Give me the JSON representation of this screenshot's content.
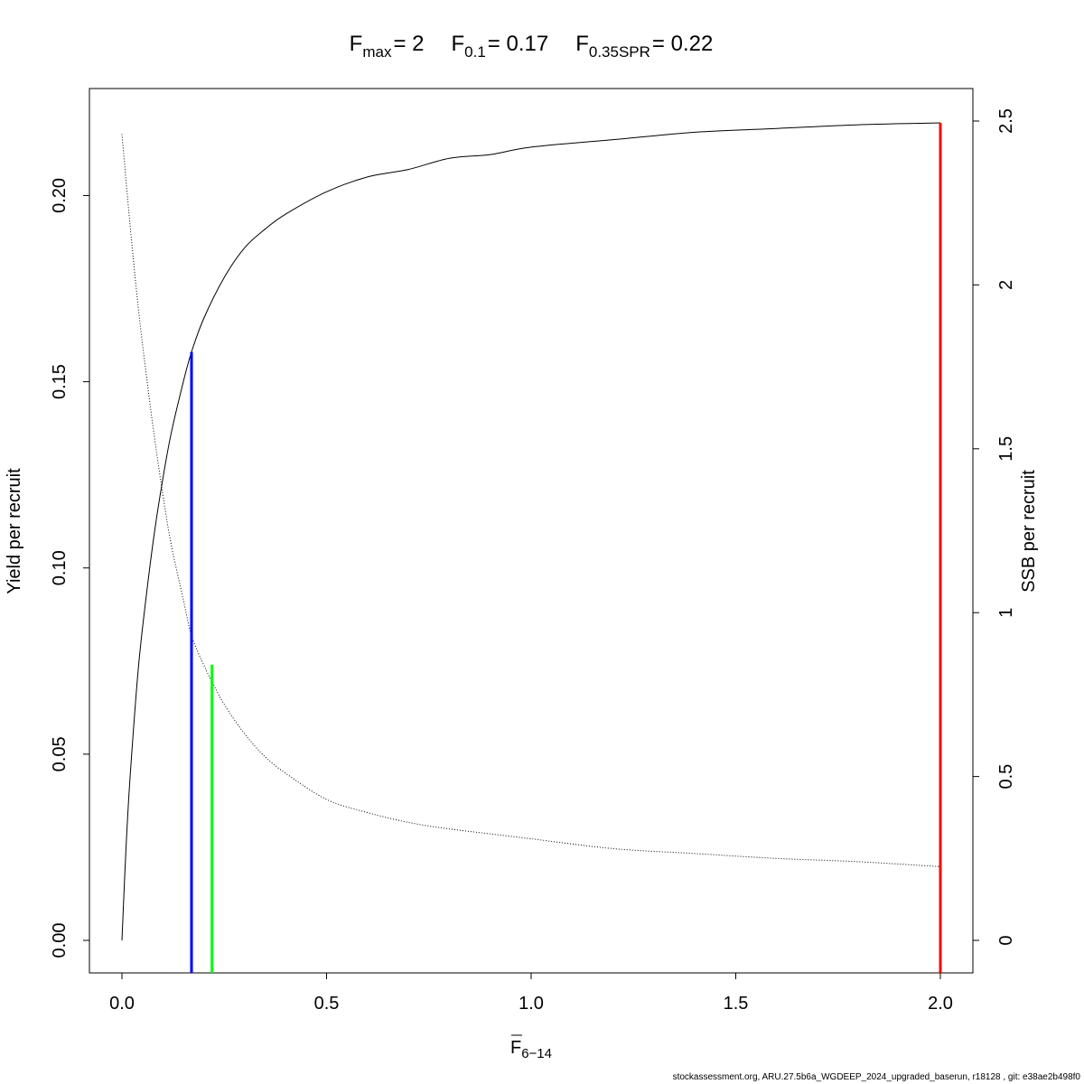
{
  "chart_data": {
    "type": "line",
    "title": {
      "parts": [
        {
          "main": "F",
          "sub": "max",
          "eq": "= 2"
        },
        {
          "main": "F",
          "sub": "0.1",
          "eq": "= 0.17"
        },
        {
          "main": "F",
          "sub": "0.35SPR",
          "eq": "= 0.22"
        }
      ]
    },
    "xlabel": {
      "main": "F",
      "sub": "6−14"
    },
    "ylabel": "Yield per recruit",
    "y2label": "SSB per recruit",
    "xlim": [
      0,
      2
    ],
    "ylim": [
      0,
      0.22
    ],
    "y2lim": [
      0,
      2.5
    ],
    "x_ticks": [
      "0.0",
      "0.5",
      "1.0",
      "1.5",
      "2.0"
    ],
    "x_tick_values": [
      0,
      0.5,
      1.0,
      1.5,
      2.0
    ],
    "y_ticks": [
      "0.00",
      "0.05",
      "0.10",
      "0.15",
      "0.20"
    ],
    "y_tick_values": [
      0,
      0.05,
      0.1,
      0.15,
      0.2
    ],
    "y2_ticks": [
      "0",
      "0.5",
      "1",
      "1.5",
      "2",
      "2.5"
    ],
    "y2_tick_values": [
      0,
      0.5,
      1,
      1.5,
      2,
      2.5
    ],
    "grid": false,
    "series": [
      {
        "axis": "left",
        "style": "solid",
        "color": "#000000",
        "points": [
          [
            0,
            0
          ],
          [
            0.01,
            0.025
          ],
          [
            0.02,
            0.044
          ],
          [
            0.04,
            0.073
          ],
          [
            0.06,
            0.093
          ],
          [
            0.08,
            0.11
          ],
          [
            0.1,
            0.124
          ],
          [
            0.12,
            0.136
          ],
          [
            0.15,
            0.15
          ],
          [
            0.17,
            0.158
          ],
          [
            0.2,
            0.167
          ],
          [
            0.25,
            0.178
          ],
          [
            0.3,
            0.186
          ],
          [
            0.35,
            0.191
          ],
          [
            0.4,
            0.195
          ],
          [
            0.5,
            0.201
          ],
          [
            0.6,
            0.205
          ],
          [
            0.7,
            0.207
          ],
          [
            0.8,
            0.21
          ],
          [
            0.9,
            0.211
          ],
          [
            1.0,
            0.213
          ],
          [
            1.2,
            0.215
          ],
          [
            1.4,
            0.217
          ],
          [
            1.6,
            0.218
          ],
          [
            1.8,
            0.219
          ],
          [
            2.0,
            0.2195
          ]
        ]
      },
      {
        "axis": "right",
        "style": "dotted",
        "color": "#000000",
        "points": [
          [
            0,
            2.46
          ],
          [
            0.02,
            2.18
          ],
          [
            0.04,
            1.93
          ],
          [
            0.06,
            1.72
          ],
          [
            0.08,
            1.53
          ],
          [
            0.1,
            1.36
          ],
          [
            0.12,
            1.21
          ],
          [
            0.15,
            1.04
          ],
          [
            0.17,
            0.93
          ],
          [
            0.2,
            0.84
          ],
          [
            0.22,
            0.79
          ],
          [
            0.25,
            0.72
          ],
          [
            0.3,
            0.63
          ],
          [
            0.35,
            0.56
          ],
          [
            0.4,
            0.51
          ],
          [
            0.5,
            0.43
          ],
          [
            0.6,
            0.39
          ],
          [
            0.7,
            0.36
          ],
          [
            0.8,
            0.34
          ],
          [
            0.9,
            0.325
          ],
          [
            1.0,
            0.31
          ],
          [
            1.2,
            0.28
          ],
          [
            1.4,
            0.265
          ],
          [
            1.6,
            0.25
          ],
          [
            1.8,
            0.24
          ],
          [
            2.0,
            0.225
          ]
        ]
      }
    ],
    "reference_lines": [
      {
        "x": 0.17,
        "y_top": 0.158,
        "color": "#0000ff"
      },
      {
        "x": 0.22,
        "y_top": 0.074,
        "color": "#00ff00"
      },
      {
        "x": 2.0,
        "y_top": 0.2195,
        "color": "#ff0000"
      }
    ]
  },
  "footer": "stockassessment.org, ARU.27.5b6a_WGDEEP_2024_upgraded_baserun, r18128 , git: e38ae2b498f0"
}
